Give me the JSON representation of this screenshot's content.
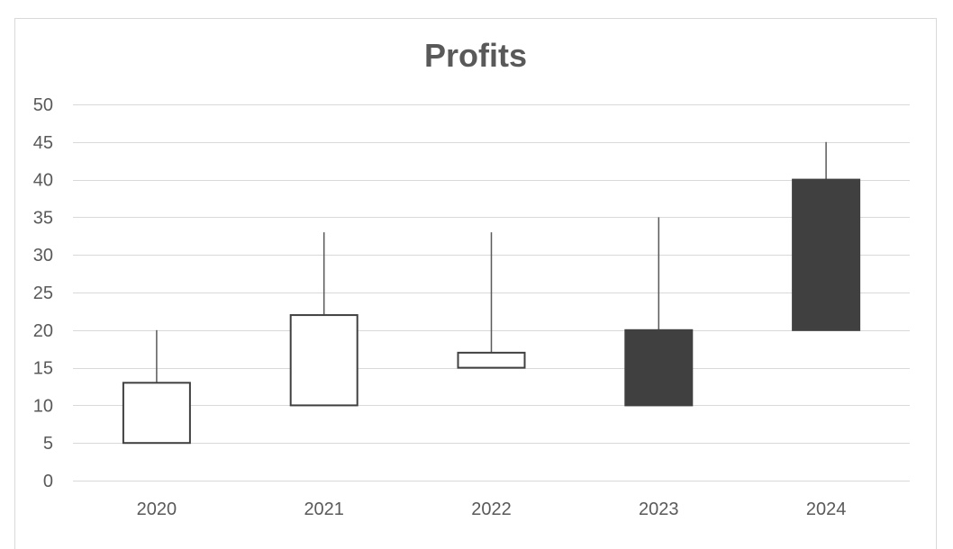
{
  "chart_data": {
    "type": "candlestick",
    "title": "Profits",
    "xlabel": "",
    "ylabel": "",
    "ylim": [
      0,
      50
    ],
    "yticks": [
      0,
      5,
      10,
      15,
      20,
      25,
      30,
      35,
      40,
      45,
      50
    ],
    "grid": true,
    "categories": [
      "2020",
      "2021",
      "2022",
      "2023",
      "2024"
    ],
    "open": [
      5,
      10,
      15,
      20,
      40
    ],
    "high": [
      20,
      33,
      33,
      35,
      45
    ],
    "low": [
      5,
      10,
      15,
      10,
      20
    ],
    "close": [
      13,
      22,
      17,
      10,
      20
    ],
    "colors": {
      "up_fill": "#ffffff",
      "down_fill": "#404040",
      "stroke": "#404040",
      "wick": "#595959",
      "grid": "#d9d9d9",
      "text": "#595959"
    }
  }
}
